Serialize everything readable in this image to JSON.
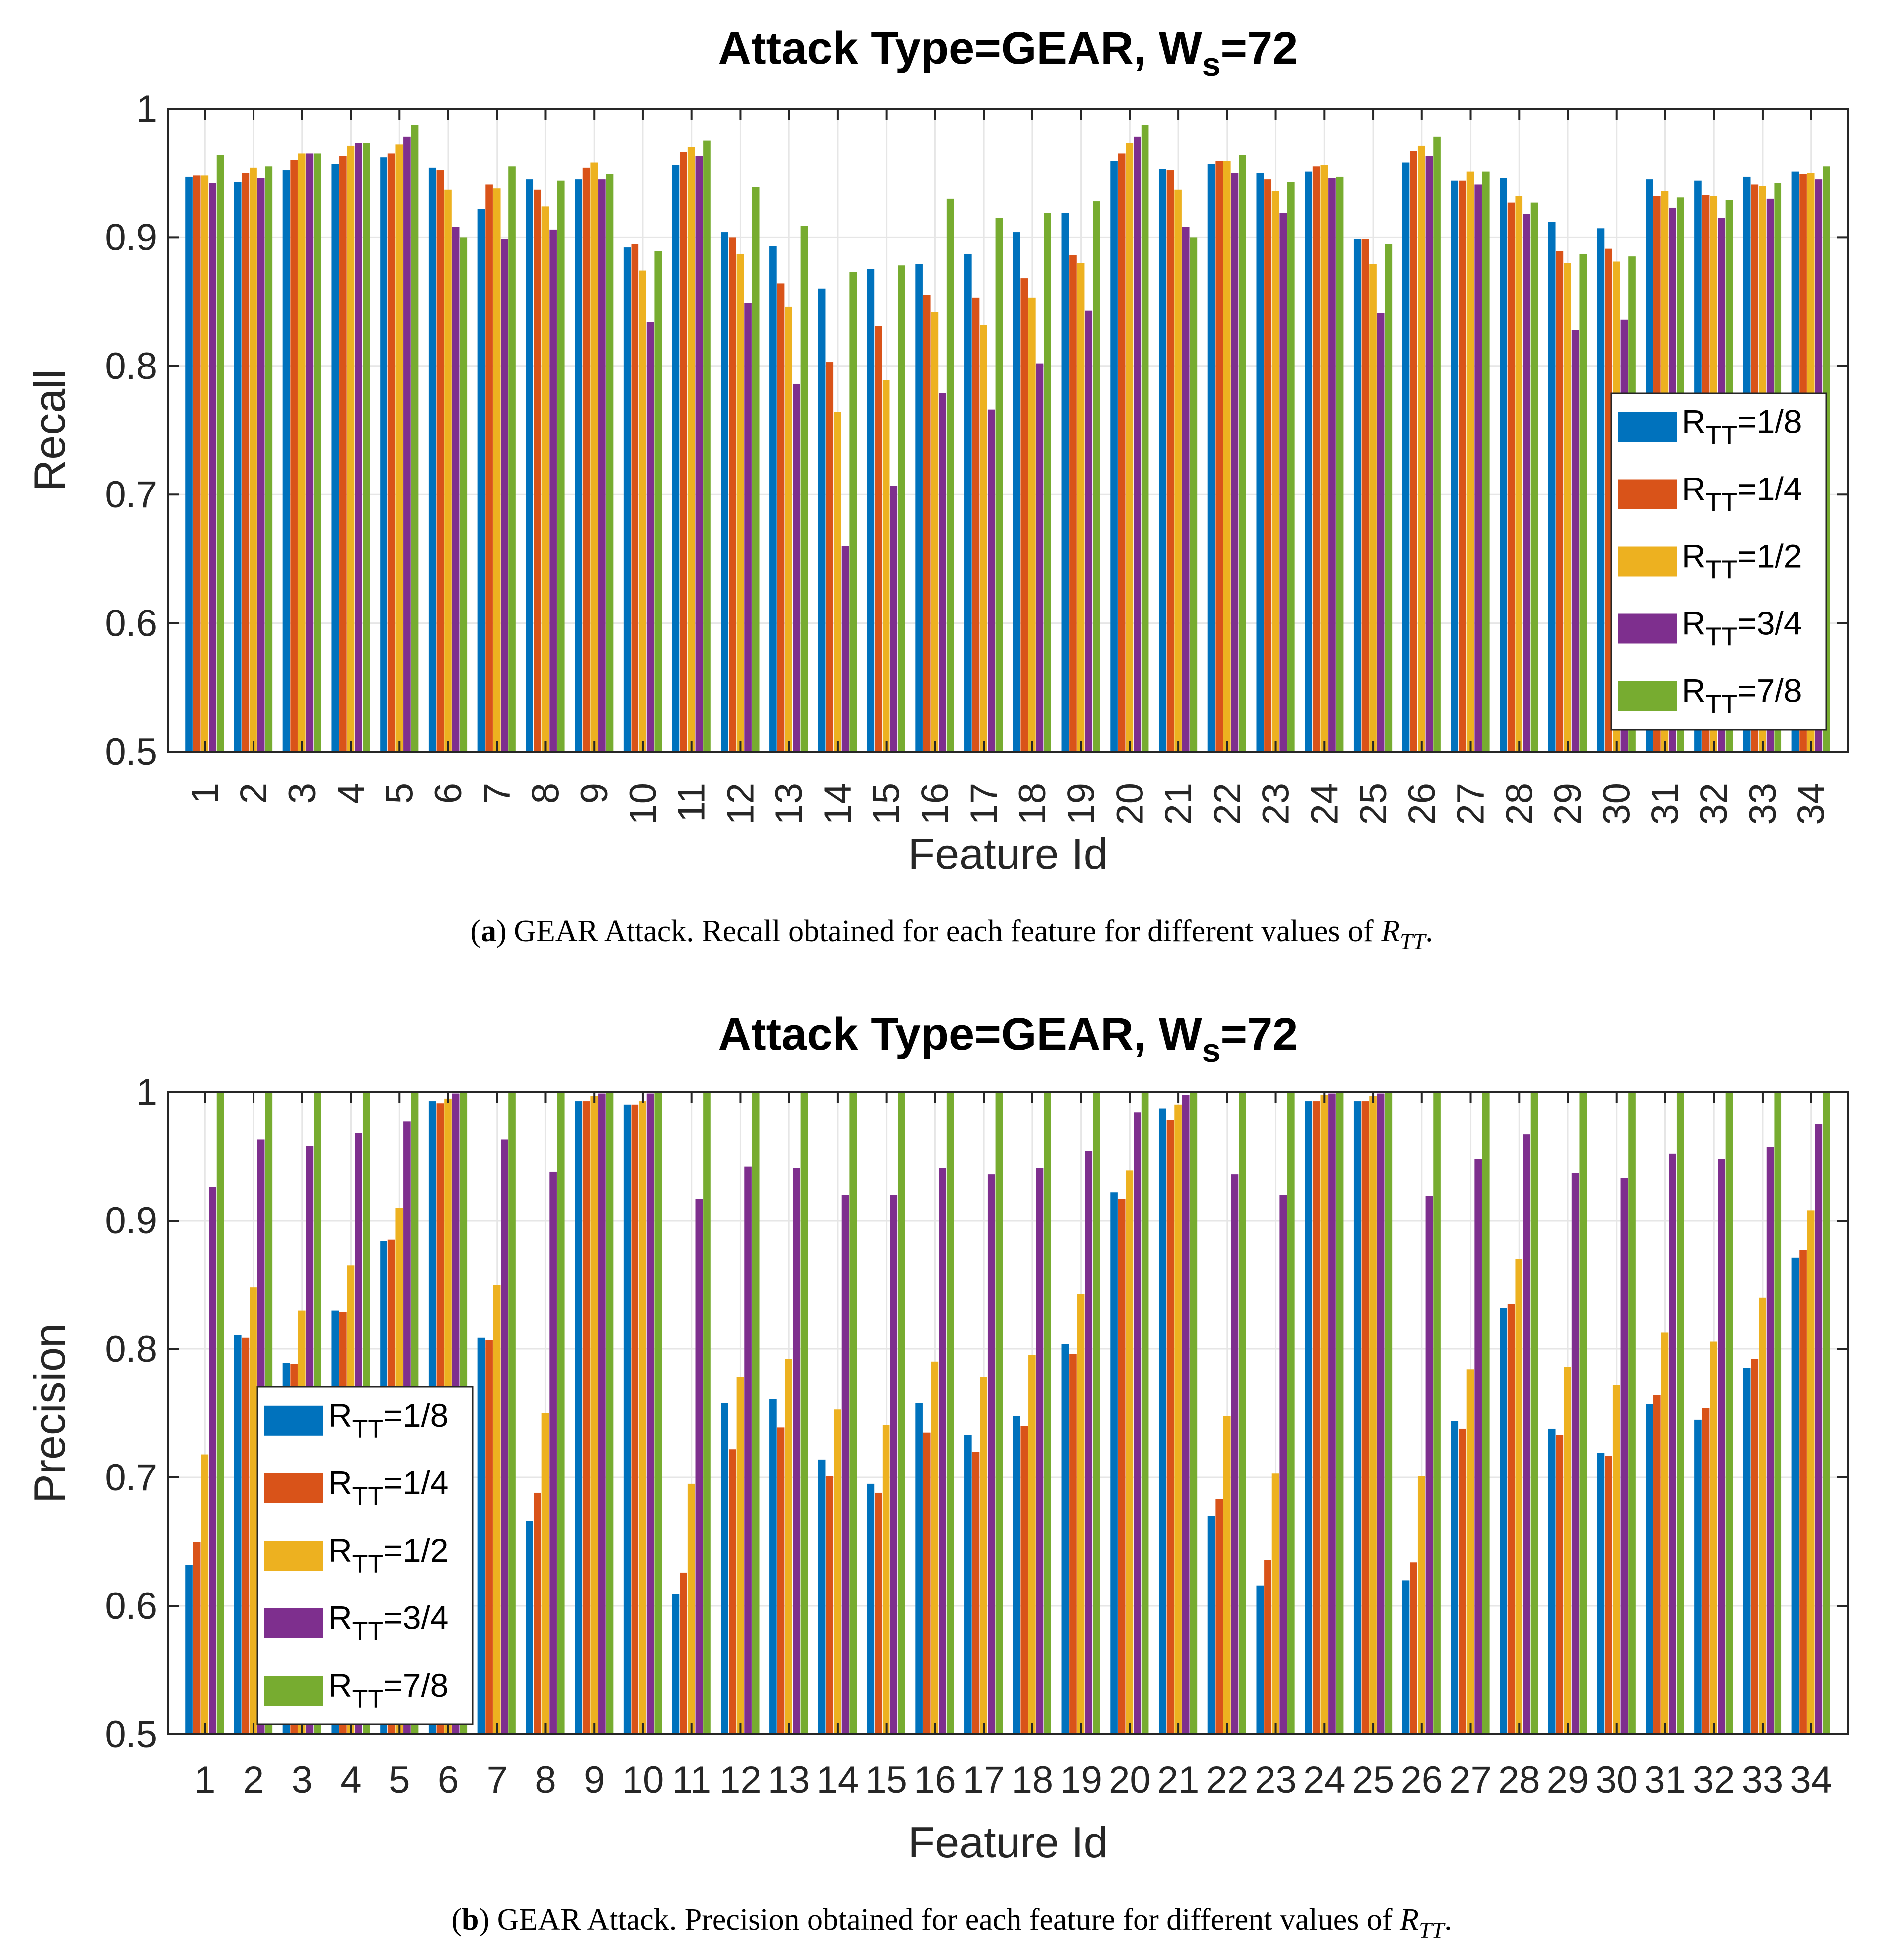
{
  "colors": {
    "series": [
      "#0072BD",
      "#D95319",
      "#EDB120",
      "#7E2F8E",
      "#77AC30"
    ],
    "axis": "#262626",
    "grid": "#e6e6e6"
  },
  "chart_data": [
    {
      "type": "bar",
      "title": "Attack Type=GEAR, W_s=72",
      "title_main": "Attack Type=GEAR, W",
      "title_sub": "s",
      "title_end": "=72",
      "xlabel": "Feature Id",
      "ylabel": "Recall",
      "ylim": [
        0.5,
        1
      ],
      "yticks": [
        "0.5",
        "0.6",
        "0.7",
        "0.8",
        "0.9",
        "1"
      ],
      "tick_rotation": "vertical",
      "legend_position": "right-middle",
      "grid": true,
      "categories": [
        "1",
        "2",
        "3",
        "4",
        "5",
        "6",
        "7",
        "8",
        "9",
        "10",
        "11",
        "12",
        "13",
        "14",
        "15",
        "16",
        "17",
        "18",
        "19",
        "20",
        "21",
        "22",
        "23",
        "24",
        "25",
        "26",
        "27",
        "28",
        "29",
        "30",
        "31",
        "32",
        "33",
        "34"
      ],
      "series": [
        {
          "name": "R_TT=1/8",
          "label_main": "R",
          "label_sub": "TT",
          "label_end": "=1/8",
          "values": [
            0.947,
            0.943,
            0.952,
            0.957,
            0.962,
            0.954,
            0.922,
            0.945,
            0.945,
            0.892,
            0.956,
            0.904,
            0.893,
            0.86,
            0.875,
            0.879,
            0.887,
            0.904,
            0.919,
            0.959,
            0.953,
            0.957,
            0.95,
            0.951,
            0.899,
            0.958,
            0.944,
            0.946,
            0.912,
            0.907,
            0.945,
            0.944,
            0.947,
            0.951
          ]
        },
        {
          "name": "R_TT=1/4",
          "label_main": "R",
          "label_sub": "TT",
          "label_end": "=1/4",
          "values": [
            0.948,
            0.95,
            0.96,
            0.963,
            0.965,
            0.952,
            0.941,
            0.937,
            0.954,
            0.895,
            0.966,
            0.9,
            0.864,
            0.803,
            0.831,
            0.855,
            0.853,
            0.868,
            0.886,
            0.965,
            0.952,
            0.959,
            0.945,
            0.955,
            0.899,
            0.967,
            0.944,
            0.927,
            0.889,
            0.891,
            0.932,
            0.933,
            0.941,
            0.949
          ]
        },
        {
          "name": "R_TT=1/2",
          "label_main": "R",
          "label_sub": "TT",
          "label_end": "=1/2",
          "values": [
            0.948,
            0.954,
            0.965,
            0.971,
            0.972,
            0.937,
            0.938,
            0.924,
            0.958,
            0.874,
            0.97,
            0.887,
            0.846,
            0.764,
            0.789,
            0.842,
            0.832,
            0.853,
            0.88,
            0.973,
            0.937,
            0.959,
            0.936,
            0.956,
            0.879,
            0.971,
            0.951,
            0.932,
            0.88,
            0.881,
            0.936,
            0.932,
            0.94,
            0.95
          ]
        },
        {
          "name": "R_TT=3/4",
          "label_main": "R",
          "label_sub": "TT",
          "label_end": "=3/4",
          "values": [
            0.942,
            0.946,
            0.965,
            0.973,
            0.978,
            0.908,
            0.899,
            0.906,
            0.945,
            0.834,
            0.963,
            0.849,
            0.786,
            0.66,
            0.707,
            0.779,
            0.766,
            0.802,
            0.843,
            0.978,
            0.908,
            0.95,
            0.919,
            0.946,
            0.841,
            0.963,
            0.941,
            0.918,
            0.828,
            0.836,
            0.923,
            0.915,
            0.93,
            0.945
          ]
        },
        {
          "name": "R_TT=7/8",
          "label_main": "R",
          "label_sub": "TT",
          "label_end": "=7/8",
          "values": [
            0.964,
            0.955,
            0.965,
            0.973,
            0.987,
            0.9,
            0.955,
            0.944,
            0.949,
            0.889,
            0.975,
            0.939,
            0.909,
            0.873,
            0.878,
            0.93,
            0.915,
            0.919,
            0.928,
            0.987,
            0.9,
            0.964,
            0.943,
            0.947,
            0.895,
            0.978,
            0.951,
            0.927,
            0.887,
            0.885,
            0.931,
            0.929,
            0.942,
            0.955
          ]
        }
      ],
      "caption_label": "a",
      "caption_text": " GEAR Attack. Recall obtained for each feature for different values of ",
      "caption_sym": "R",
      "caption_sym_sub": "TT",
      "caption_end": "."
    },
    {
      "type": "bar",
      "title": "Attack Type=GEAR, W_s=72",
      "title_main": "Attack Type=GEAR, W",
      "title_sub": "s",
      "title_end": "=72",
      "xlabel": "Feature Id",
      "ylabel": "Precision",
      "ylim": [
        0.5,
        1
      ],
      "yticks": [
        "0.5",
        "0.6",
        "0.7",
        "0.8",
        "0.9",
        "1"
      ],
      "tick_rotation": "horizontal",
      "legend_position": "left-middle",
      "grid": true,
      "categories": [
        "1",
        "2",
        "3",
        "4",
        "5",
        "6",
        "7",
        "8",
        "9",
        "10",
        "11",
        "12",
        "13",
        "14",
        "15",
        "16",
        "17",
        "18",
        "19",
        "20",
        "21",
        "22",
        "23",
        "24",
        "25",
        "26",
        "27",
        "28",
        "29",
        "30",
        "31",
        "32",
        "33",
        "34"
      ],
      "series": [
        {
          "name": "R_TT=1/8",
          "label_main": "R",
          "label_sub": "TT",
          "label_end": "=1/8",
          "values": [
            0.632,
            0.811,
            0.789,
            0.83,
            0.884,
            0.993,
            0.809,
            0.666,
            0.993,
            0.99,
            0.609,
            0.758,
            0.761,
            0.714,
            0.695,
            0.758,
            0.733,
            0.748,
            0.804,
            0.922,
            0.987,
            0.67,
            0.616,
            0.993,
            0.993,
            0.62,
            0.744,
            0.832,
            0.738,
            0.719,
            0.757,
            0.745,
            0.785,
            0.871
          ]
        },
        {
          "name": "R_TT=1/4",
          "label_main": "R",
          "label_sub": "TT",
          "label_end": "=1/4",
          "values": [
            0.65,
            0.809,
            0.788,
            0.829,
            0.885,
            0.991,
            0.807,
            0.688,
            0.993,
            0.99,
            0.626,
            0.722,
            0.739,
            0.701,
            0.688,
            0.735,
            0.72,
            0.74,
            0.796,
            0.917,
            0.978,
            0.683,
            0.636,
            0.993,
            0.993,
            0.634,
            0.738,
            0.835,
            0.733,
            0.717,
            0.764,
            0.754,
            0.792,
            0.877
          ]
        },
        {
          "name": "R_TT=1/2",
          "label_main": "R",
          "label_sub": "TT",
          "label_end": "=1/2",
          "values": [
            0.718,
            0.848,
            0.83,
            0.865,
            0.91,
            0.995,
            0.85,
            0.75,
            0.997,
            0.993,
            0.695,
            0.778,
            0.792,
            0.753,
            0.741,
            0.79,
            0.778,
            0.795,
            0.843,
            0.939,
            0.99,
            0.748,
            0.703,
            0.998,
            0.997,
            0.701,
            0.784,
            0.87,
            0.786,
            0.772,
            0.813,
            0.806,
            0.84,
            0.908
          ]
        },
        {
          "name": "R_TT=3/4",
          "label_main": "R",
          "label_sub": "TT",
          "label_end": "=3/4",
          "values": [
            0.926,
            0.963,
            0.958,
            0.968,
            0.977,
            0.999,
            0.963,
            0.938,
            0.999,
            0.999,
            0.917,
            0.942,
            0.941,
            0.92,
            0.92,
            0.941,
            0.936,
            0.941,
            0.954,
            0.984,
            0.998,
            0.936,
            0.92,
            0.999,
            0.999,
            0.919,
            0.948,
            0.967,
            0.937,
            0.933,
            0.952,
            0.948,
            0.957,
            0.975
          ]
        },
        {
          "name": "R_TT=7/8",
          "label_main": "R",
          "label_sub": "TT",
          "label_end": "=7/8",
          "values": [
            1,
            1,
            1,
            1,
            1,
            1,
            1,
            1,
            1,
            1,
            1,
            1,
            1,
            1,
            1,
            1,
            1,
            1,
            1,
            1,
            1,
            1,
            1,
            1,
            1,
            1,
            1,
            1,
            1,
            1,
            1,
            1,
            1,
            1
          ]
        }
      ],
      "caption_label": "b",
      "caption_text": " GEAR Attack. Precision obtained for each feature for different values of ",
      "caption_sym": "R",
      "caption_sym_sub": "TT",
      "caption_end": "."
    }
  ]
}
